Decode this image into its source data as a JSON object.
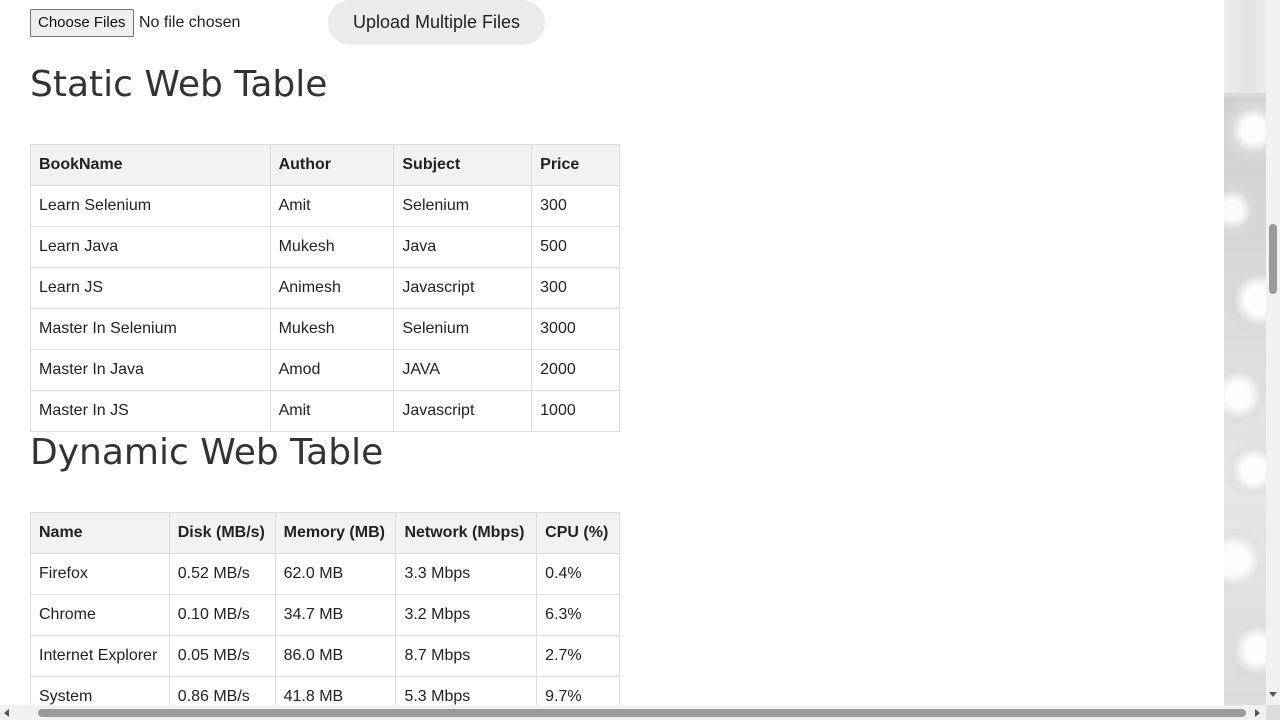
{
  "upload": {
    "choose_label": "Choose Files",
    "status": "No file chosen",
    "upload_button": "Upload Multiple Files"
  },
  "static_table": {
    "title": "Static Web Table",
    "headers": [
      "BookName",
      "Author",
      "Subject",
      "Price"
    ],
    "rows": [
      [
        "Learn Selenium",
        "Amit",
        "Selenium",
        "300"
      ],
      [
        "Learn Java",
        "Mukesh",
        "Java",
        "500"
      ],
      [
        "Learn JS",
        "Animesh",
        "Javascript",
        "300"
      ],
      [
        "Master In Selenium",
        "Mukesh",
        "Selenium",
        "3000"
      ],
      [
        "Master In Java",
        "Amod",
        "JAVA",
        "2000"
      ],
      [
        "Master In JS",
        "Amit",
        "Javascript",
        "1000"
      ]
    ]
  },
  "dynamic_table": {
    "title": "Dynamic Web Table",
    "headers": [
      "Name",
      "Disk (MB/s)",
      "Memory (MB)",
      "Network (Mbps)",
      "CPU (%)"
    ],
    "rows": [
      [
        "Firefox",
        "0.52 MB/s",
        "62.0 MB",
        "3.3 Mbps",
        "0.4%"
      ],
      [
        "Chrome",
        "0.10 MB/s",
        "34.7 MB",
        "3.2 Mbps",
        "6.3%"
      ],
      [
        "Internet Explorer",
        "0.05 MB/s",
        "86.0 MB",
        "8.7 Mbps",
        "2.7%"
      ],
      [
        "System",
        "0.86 MB/s",
        "41.8 MB",
        "5.3 Mbps",
        "9.7%"
      ]
    ]
  }
}
